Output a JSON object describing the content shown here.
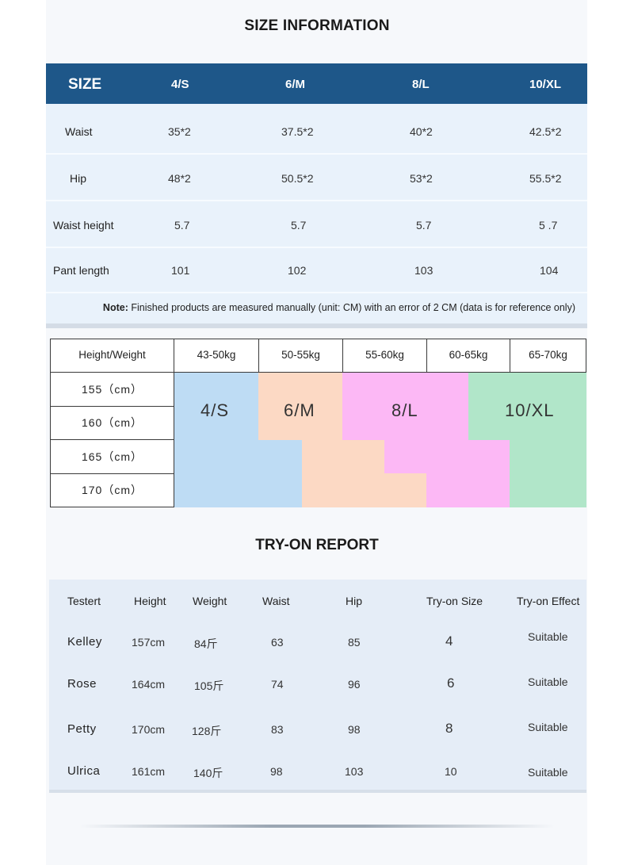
{
  "size_information": {
    "title": "SIZE INFORMATION",
    "header": [
      "SIZE",
      "4/S",
      "6/M",
      "8/L",
      "10/XL"
    ],
    "rows": [
      {
        "label": "Waist",
        "values": [
          "35*2",
          "37.5*2",
          "40*2",
          "42.5*2"
        ]
      },
      {
        "label": "Hip",
        "values": [
          "48*2",
          "50.5*2",
          "53*2",
          "55.5*2"
        ]
      },
      {
        "label": "Waist height",
        "values": [
          "5.7",
          "5.7",
          "5.7",
          "5 .7"
        ]
      },
      {
        "label": "Pant length",
        "values": [
          "101",
          "102",
          "103",
          "104"
        ]
      }
    ],
    "note_bold": "Note:",
    "note_text": " Finished products are measured manually (unit: CM) with an error of 2 CM (data is for reference only)"
  },
  "height_weight": {
    "corner": "Height/Weight",
    "weights": [
      "43-50kg",
      "50-55kg",
      "55-60kg",
      "60-65kg",
      "65-70kg"
    ],
    "heights": [
      "155（cm）",
      "160（cm）",
      "165（cm）",
      "170（cm）"
    ],
    "sizes": [
      {
        "label": "4/S",
        "color": "#bedcf4"
      },
      {
        "label": "6/M",
        "color": "#fcd9c4"
      },
      {
        "label": "8/L",
        "color": "#fcb8f5"
      },
      {
        "label": "10/XL",
        "color": "#b1e6c9"
      }
    ]
  },
  "try_on_report": {
    "title": "TRY-ON REPORT",
    "headers": [
      "Testert",
      "Height",
      "Weight",
      "Waist",
      "Hip",
      "Try-on Size",
      "Try-on Effect"
    ],
    "rows": [
      [
        "Kelley",
        "157cm",
        "84斤",
        "63",
        "85",
        "4",
        "Suitable"
      ],
      [
        "Rose",
        "164cm",
        "105斤",
        "74",
        "96",
        "6",
        "Suitable"
      ],
      [
        "Petty",
        "170cm",
        "128斤",
        "83",
        "98",
        "8",
        "Suitable"
      ],
      [
        "Ulrica",
        "161cm",
        "140斤",
        "98",
        "103",
        "10",
        "Suitable"
      ]
    ]
  }
}
